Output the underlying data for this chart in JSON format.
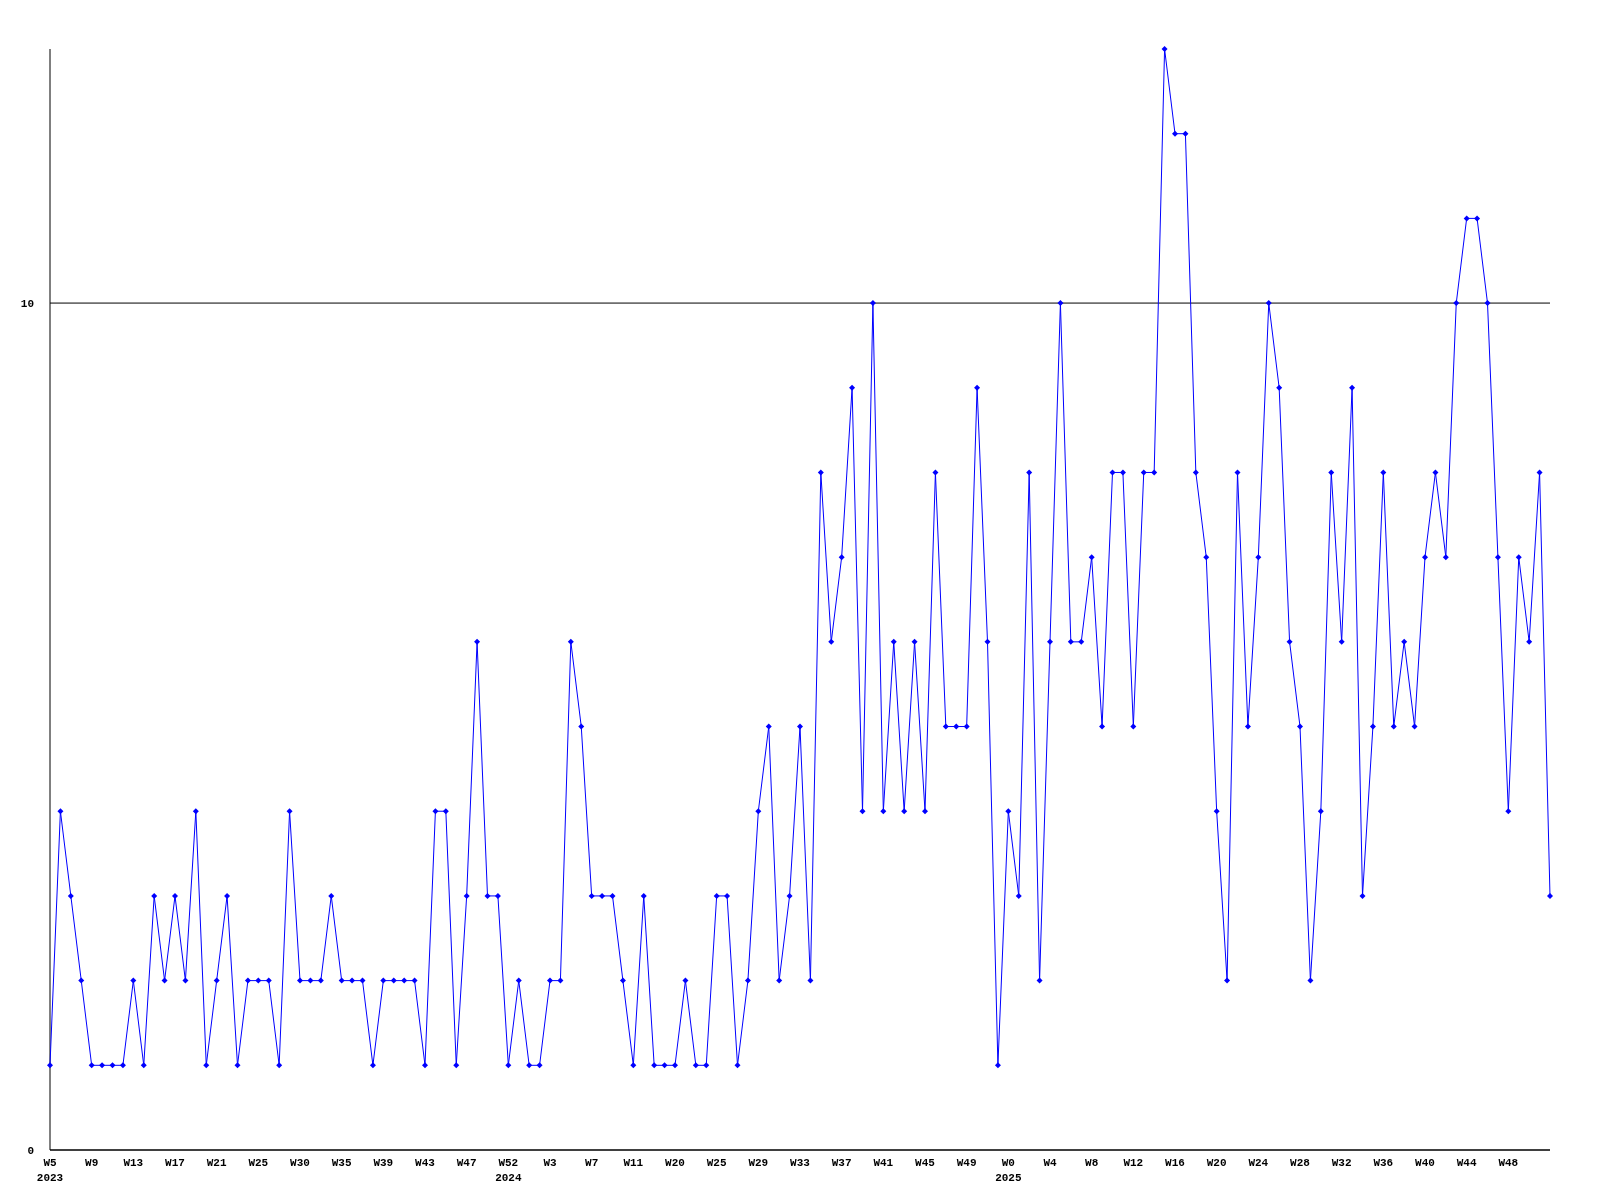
{
  "chart_data": {
    "type": "line",
    "categories": [
      "W5\n2023",
      null,
      null,
      null,
      "W9",
      null,
      null,
      null,
      "W13",
      null,
      null,
      null,
      "W17",
      null,
      null,
      null,
      "W21",
      null,
      null,
      null,
      "W25",
      null,
      null,
      null,
      "W30",
      null,
      null,
      null,
      "W35",
      null,
      null,
      null,
      "W39",
      null,
      null,
      null,
      "W43",
      null,
      null,
      null,
      "W47",
      null,
      null,
      null,
      "W52\n2024",
      null,
      null,
      null,
      "W3",
      null,
      null,
      null,
      "W7",
      null,
      null,
      null,
      "W11",
      null,
      null,
      null,
      "W20",
      null,
      null,
      null,
      "W25",
      null,
      null,
      null,
      "W29",
      null,
      null,
      null,
      "W33",
      null,
      null,
      null,
      "W37",
      null,
      null,
      null,
      "W41",
      null,
      null,
      null,
      "W45",
      null,
      null,
      null,
      "W49",
      null,
      null,
      null,
      "W0\n2025",
      null,
      null,
      null,
      "W4",
      null,
      null,
      null,
      "W8",
      null,
      null,
      null,
      "W12",
      null,
      null,
      null,
      "W16",
      null,
      null,
      null,
      "W20",
      null,
      null,
      null,
      "W24",
      null,
      null,
      null,
      "W28",
      null,
      null,
      null,
      "W32",
      null,
      null,
      null,
      "W36",
      null,
      null,
      null,
      "W40",
      null,
      null,
      null,
      "W44",
      null,
      null,
      null,
      "W48",
      null,
      null,
      null,
      null
    ],
    "series": [
      {
        "color": "#0000ff",
        "values": [
          1,
          4,
          3,
          2,
          1,
          1,
          1,
          1,
          2,
          1,
          3,
          2,
          3,
          2,
          4,
          1,
          2,
          3,
          1,
          2,
          2,
          2,
          1,
          4,
          2,
          2,
          2,
          3,
          2,
          2,
          2,
          1,
          2,
          2,
          2,
          2,
          1,
          4,
          4,
          1,
          3,
          6,
          3,
          3,
          1,
          2,
          1,
          1,
          2,
          2,
          6,
          5,
          3,
          3,
          3,
          2,
          1,
          3,
          1,
          1,
          1,
          2,
          1,
          1,
          3,
          3,
          1,
          2,
          4,
          5,
          2,
          3,
          5,
          2,
          8,
          6,
          7,
          9,
          4,
          10,
          4,
          6,
          4,
          6,
          4,
          8,
          5,
          5,
          5,
          9,
          6,
          1,
          4,
          3,
          8,
          2,
          6,
          10,
          6,
          6,
          7,
          5,
          8,
          8,
          5,
          8,
          8,
          13,
          12,
          12,
          8,
          7,
          4,
          2,
          8,
          5,
          7,
          10,
          9,
          6,
          5,
          2,
          4,
          8,
          6,
          9,
          3,
          5,
          8,
          5,
          6,
          5,
          7,
          8,
          7,
          10,
          11,
          11,
          10,
          7,
          4,
          7,
          6,
          8,
          3
        ]
      }
    ],
    "ylim": [
      0,
      13
    ],
    "yticks": [
      0,
      10
    ],
    "grid": "y",
    "marker": "diamond",
    "line_style": "solid"
  }
}
